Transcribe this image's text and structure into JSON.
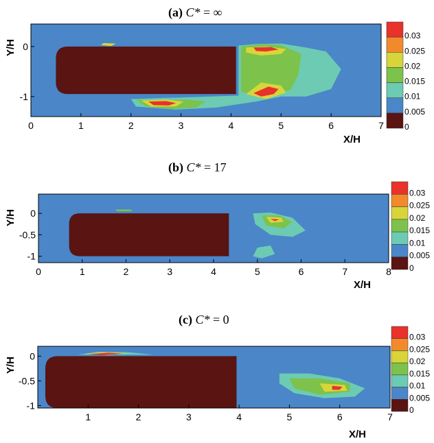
{
  "colorbar": {
    "levels": [
      "0.03",
      "0.025",
      "0.02",
      "0.015",
      "0.01",
      "0.005",
      "0"
    ],
    "colors": [
      "#e8322b",
      "#f28a2c",
      "#d8d53a",
      "#7dc24a",
      "#6ccbb2",
      "#4a86c8",
      "#5a1412"
    ]
  },
  "chart_data": [
    {
      "type": "heatmap",
      "label": "(a)",
      "title_symbol": "C*",
      "title_relation": "=",
      "title_value": "∞",
      "xlabel": "X/H",
      "ylabel": "Y/H",
      "xlim": [
        0,
        7
      ],
      "ylim": [
        -1.4,
        0.45
      ],
      "xticks": [
        "0",
        "1",
        "2",
        "3",
        "4",
        "5",
        "6",
        "7"
      ],
      "yticks": [
        "0",
        "-1"
      ],
      "body": {
        "x": [
          0.5,
          4.1
        ],
        "y": [
          -0.95,
          0
        ]
      },
      "contours": [
        {
          "level": 0.005,
          "points": [
            [
              0.5,
              -0.03
            ],
            [
              0.8,
              0.04
            ],
            [
              1.3,
              0.06
            ],
            [
              1.7,
              0.06
            ],
            [
              2.0,
              0.05
            ],
            [
              2.3,
              0.02
            ],
            [
              4.1,
              0.01
            ],
            [
              4.2,
              0.05
            ],
            [
              4.5,
              0.09
            ],
            [
              4.9,
              0.1
            ],
            [
              5.4,
              0.05
            ],
            [
              5.9,
              0.05
            ],
            [
              6.4,
              0.02
            ],
            [
              6.9,
              -0.1
            ],
            [
              6.85,
              -0.55
            ],
            [
              6.4,
              -0.95
            ],
            [
              5.9,
              -1.1
            ],
            [
              5.3,
              -1.05
            ],
            [
              4.4,
              -1.18
            ],
            [
              3.6,
              -1.3
            ],
            [
              2.8,
              -1.35
            ],
            [
              2.0,
              -1.3
            ],
            [
              1.5,
              -1.05
            ],
            [
              1.0,
              -0.96
            ],
            [
              0.5,
              -0.92
            ]
          ]
        },
        {
          "level": 0.01,
          "points": [
            [
              4.15,
              0.02
            ],
            [
              4.5,
              0.05
            ],
            [
              5.0,
              0.06
            ],
            [
              5.5,
              -0.02
            ],
            [
              5.9,
              -0.1
            ],
            [
              6.2,
              -0.45
            ],
            [
              6.0,
              -0.85
            ],
            [
              5.5,
              -1.0
            ],
            [
              5.0,
              -1.0
            ],
            [
              4.5,
              -1.1
            ],
            [
              3.7,
              -1.22
            ],
            [
              2.9,
              -1.26
            ],
            [
              2.1,
              -1.2
            ],
            [
              2.0,
              -1.05
            ],
            [
              4.15,
              -0.98
            ]
          ]
        },
        {
          "level": 0.015,
          "points": [
            [
              4.2,
              0.0
            ],
            [
              4.6,
              0.04
            ],
            [
              5.0,
              0.03
            ],
            [
              5.4,
              -0.15
            ],
            [
              5.35,
              -0.55
            ],
            [
              5.2,
              -0.85
            ],
            [
              4.7,
              -1.05
            ],
            [
              4.2,
              -0.9
            ]
          ]
        },
        {
          "level": 0.015,
          "points": [
            [
              2.1,
              -1.06
            ],
            [
              2.6,
              -1.08
            ],
            [
              3.1,
              -1.06
            ],
            [
              3.5,
              -1.1
            ],
            [
              3.3,
              -1.22
            ],
            [
              2.8,
              -1.25
            ],
            [
              2.3,
              -1.2
            ]
          ]
        },
        {
          "level": 0.02,
          "points": [
            [
              4.3,
              -0.02
            ],
            [
              4.7,
              0.0
            ],
            [
              5.1,
              -0.05
            ],
            [
              5.0,
              -0.15
            ],
            [
              4.6,
              -0.18
            ],
            [
              4.3,
              -0.12
            ]
          ]
        },
        {
          "level": 0.02,
          "points": [
            [
              4.3,
              -0.95
            ],
            [
              4.6,
              -0.72
            ],
            [
              5.0,
              -0.78
            ],
            [
              5.1,
              -0.92
            ],
            [
              4.7,
              -1.05
            ]
          ]
        },
        {
          "level": 0.02,
          "points": [
            [
              2.2,
              -1.08
            ],
            [
              2.7,
              -1.06
            ],
            [
              3.05,
              -1.1
            ],
            [
              2.9,
              -1.2
            ],
            [
              2.4,
              -1.2
            ]
          ]
        },
        {
          "level": 0.02,
          "points": [
            [
              1.45,
              0.07
            ],
            [
              1.7,
              0.06
            ],
            [
              1.6,
              0.01
            ],
            [
              1.4,
              0.03
            ]
          ]
        },
        {
          "level": 0.03,
          "points": [
            [
              4.45,
              -0.02
            ],
            [
              4.8,
              -0.01
            ],
            [
              4.95,
              -0.06
            ],
            [
              4.7,
              -0.1
            ],
            [
              4.5,
              -0.09
            ]
          ]
        },
        {
          "level": 0.03,
          "points": [
            [
              4.45,
              -0.93
            ],
            [
              4.75,
              -0.8
            ],
            [
              4.95,
              -0.85
            ],
            [
              4.85,
              -0.95
            ],
            [
              4.6,
              -1.0
            ]
          ]
        },
        {
          "level": 0.03,
          "points": [
            [
              2.35,
              -1.1
            ],
            [
              2.7,
              -1.09
            ],
            [
              2.9,
              -1.13
            ],
            [
              2.75,
              -1.18
            ],
            [
              2.45,
              -1.17
            ]
          ]
        }
      ]
    },
    {
      "type": "heatmap",
      "label": "(b)",
      "title_symbol": "C*",
      "title_relation": "=",
      "title_value": "17",
      "xlabel": "X/H",
      "ylabel": "Y/H",
      "xlim": [
        0,
        8
      ],
      "ylim": [
        -1.15,
        0.45
      ],
      "xticks": [
        "0",
        "1",
        "2",
        "3",
        "4",
        "5",
        "6",
        "7",
        "8"
      ],
      "yticks": [
        "0",
        "-0.5",
        "-1"
      ],
      "body": {
        "x": [
          0.7,
          4.35
        ],
        "y": [
          -1.0,
          0
        ]
      },
      "contours": [
        {
          "level": 0.005,
          "points": [
            [
              1.5,
              0.1
            ],
            [
              1.9,
              0.13
            ],
            [
              2.3,
              0.12
            ],
            [
              2.5,
              0.04
            ],
            [
              2.2,
              0.01
            ],
            [
              1.6,
              0.02
            ]
          ]
        },
        {
          "level": 0.005,
          "points": [
            [
              4.4,
              0.04
            ],
            [
              4.9,
              0.1
            ],
            [
              5.5,
              0.08
            ],
            [
              6.0,
              -0.05
            ],
            [
              6.5,
              -0.15
            ],
            [
              6.9,
              -0.5
            ],
            [
              6.6,
              -0.65
            ],
            [
              6.0,
              -0.62
            ],
            [
              5.5,
              -0.7
            ],
            [
              5.3,
              -1.0
            ],
            [
              5.0,
              -1.12
            ],
            [
              4.8,
              -1.0
            ],
            [
              4.9,
              -0.6
            ],
            [
              4.5,
              -0.2
            ]
          ]
        },
        {
          "level": 0.01,
          "points": [
            [
              4.9,
              0.0
            ],
            [
              5.3,
              0.02
            ],
            [
              5.8,
              -0.1
            ],
            [
              6.1,
              -0.4
            ],
            [
              5.8,
              -0.55
            ],
            [
              5.3,
              -0.5
            ],
            [
              4.95,
              -0.25
            ]
          ]
        },
        {
          "level": 0.01,
          "points": [
            [
              5.0,
              -0.8
            ],
            [
              5.3,
              -0.75
            ],
            [
              5.4,
              -0.95
            ],
            [
              5.1,
              -1.05
            ],
            [
              4.9,
              -1.0
            ]
          ]
        },
        {
          "level": 0.015,
          "points": [
            [
              5.1,
              -0.05
            ],
            [
              5.5,
              -0.05
            ],
            [
              5.8,
              -0.2
            ],
            [
              5.6,
              -0.35
            ],
            [
              5.2,
              -0.28
            ]
          ]
        },
        {
          "level": 0.015,
          "points": [
            [
              1.75,
              0.09
            ],
            [
              2.1,
              0.09
            ],
            [
              2.15,
              0.05
            ],
            [
              1.8,
              0.05
            ]
          ]
        },
        {
          "level": 0.02,
          "points": [
            [
              5.2,
              -0.08
            ],
            [
              5.55,
              -0.1
            ],
            [
              5.6,
              -0.2
            ],
            [
              5.3,
              -0.22
            ]
          ]
        },
        {
          "level": 0.03,
          "points": [
            [
              5.3,
              -0.13
            ],
            [
              5.5,
              -0.14
            ],
            [
              5.4,
              -0.18
            ]
          ]
        }
      ]
    },
    {
      "type": "heatmap",
      "label": "(c)",
      "title_symbol": "C*",
      "title_relation": "=",
      "title_value": "0",
      "xlabel": "X/H",
      "ylabel": "Y/H",
      "xlim": [
        0,
        7
      ],
      "ylim": [
        -1.05,
        0.2
      ],
      "xticks": [
        "1",
        "2",
        "3",
        "4",
        "5",
        "6",
        "7"
      ],
      "yticks": [
        "0",
        "-0.5",
        "-1"
      ],
      "body": {
        "x": [
          0.15,
          3.95
        ],
        "y": [
          -1.05,
          0
        ]
      },
      "contours": [
        {
          "level": 0.005,
          "points": [
            [
              0.5,
              0.02
            ],
            [
              0.8,
              0.09
            ],
            [
              1.4,
              0.12
            ],
            [
              2.0,
              0.11
            ],
            [
              2.6,
              0.06
            ],
            [
              3.0,
              0.02
            ],
            [
              3.9,
              0.01
            ],
            [
              4.0,
              0.0
            ]
          ]
        },
        {
          "level": 0.005,
          "points": [
            [
              3.95,
              0.0
            ],
            [
              4.4,
              -0.02
            ],
            [
              5.0,
              -0.15
            ],
            [
              5.6,
              -0.25
            ],
            [
              6.2,
              -0.35
            ],
            [
              6.7,
              -0.6
            ],
            [
              6.8,
              -0.8
            ],
            [
              6.5,
              -0.9
            ],
            [
              5.9,
              -0.95
            ],
            [
              5.2,
              -0.85
            ],
            [
              4.6,
              -0.7
            ],
            [
              4.3,
              -0.4
            ],
            [
              4.2,
              -0.2
            ]
          ]
        },
        {
          "level": 0.01,
          "points": [
            [
              0.8,
              0.03
            ],
            [
              1.2,
              0.09
            ],
            [
              1.8,
              0.08
            ],
            [
              2.3,
              0.03
            ]
          ]
        },
        {
          "level": 0.01,
          "points": [
            [
              4.8,
              -0.35
            ],
            [
              5.4,
              -0.35
            ],
            [
              6.0,
              -0.45
            ],
            [
              6.5,
              -0.65
            ],
            [
              6.3,
              -0.82
            ],
            [
              5.7,
              -0.85
            ],
            [
              5.1,
              -0.75
            ],
            [
              4.8,
              -0.55
            ]
          ]
        },
        {
          "level": 0.015,
          "points": [
            [
              5.0,
              -0.45
            ],
            [
              5.6,
              -0.45
            ],
            [
              6.2,
              -0.55
            ],
            [
              6.2,
              -0.72
            ],
            [
              5.6,
              -0.78
            ],
            [
              5.1,
              -0.65
            ]
          ]
        },
        {
          "level": 0.02,
          "points": [
            [
              5.6,
              -0.55
            ],
            [
              6.1,
              -0.58
            ],
            [
              6.15,
              -0.7
            ],
            [
              5.7,
              -0.72
            ]
          ]
        },
        {
          "level": 0.02,
          "points": [
            [
              0.9,
              0.04
            ],
            [
              1.3,
              0.08
            ],
            [
              1.8,
              0.06
            ],
            [
              1.4,
              0.02
            ]
          ]
        },
        {
          "level": 0.03,
          "points": [
            [
              1.0,
              0.04
            ],
            [
              1.4,
              0.07
            ],
            [
              1.7,
              0.05
            ],
            [
              1.3,
              0.02
            ]
          ]
        },
        {
          "level": 0.03,
          "points": [
            [
              5.85,
              -0.6
            ],
            [
              6.05,
              -0.62
            ],
            [
              6.0,
              -0.68
            ],
            [
              5.85,
              -0.68
            ]
          ]
        }
      ]
    }
  ]
}
